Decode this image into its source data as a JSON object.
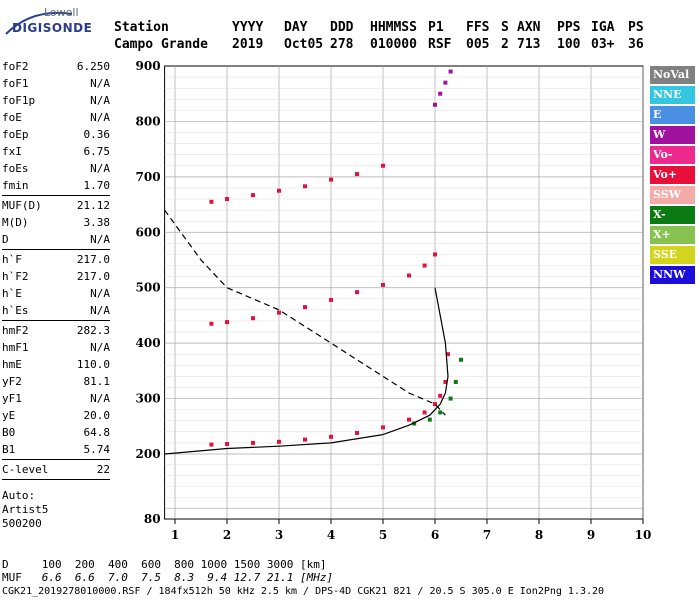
{
  "logo": {
    "top": "Lowell",
    "main": "DIGISONDE"
  },
  "header": {
    "labels": [
      "Station",
      "YYYY",
      "DAY",
      "DDD",
      "HHMMSS",
      "P1",
      "FFS",
      "S",
      "AXN",
      "PPS",
      "IGA",
      "PS"
    ],
    "values": [
      "Campo Grande",
      "2019",
      "Oct05",
      "278",
      "010000",
      "RSF",
      "005",
      "2",
      "713",
      "100",
      "03+",
      "36"
    ]
  },
  "params": {
    "group1": [
      {
        "k": "foF2",
        "v": "6.250"
      },
      {
        "k": "foF1",
        "v": "N/A"
      },
      {
        "k": "foF1p",
        "v": "N/A"
      },
      {
        "k": "foE",
        "v": "N/A"
      },
      {
        "k": "foEp",
        "v": "0.36"
      },
      {
        "k": "fxI",
        "v": "6.75"
      },
      {
        "k": "foEs",
        "v": "N/A"
      },
      {
        "k": "fmin",
        "v": "1.70"
      }
    ],
    "group2": [
      {
        "k": "MUF(D)",
        "v": "21.12"
      },
      {
        "k": "M(D)",
        "v": "3.38"
      },
      {
        "k": "D",
        "v": "N/A"
      }
    ],
    "group3": [
      {
        "k": "h`F",
        "v": "217.0"
      },
      {
        "k": "h`F2",
        "v": "217.0"
      },
      {
        "k": "h`E",
        "v": "N/A"
      },
      {
        "k": "h`Es",
        "v": "N/A"
      }
    ],
    "group4": [
      {
        "k": "hmF2",
        "v": "282.3"
      },
      {
        "k": "hmF1",
        "v": "N/A"
      },
      {
        "k": "hmE",
        "v": "110.0"
      },
      {
        "k": "yF2",
        "v": "81.1"
      },
      {
        "k": "yF1",
        "v": "N/A"
      },
      {
        "k": "yE",
        "v": "20.0"
      },
      {
        "k": "B0",
        "v": "64.8"
      },
      {
        "k": "B1",
        "v": "5.74"
      }
    ],
    "group5": [
      {
        "k": "C-level",
        "v": "22"
      }
    ],
    "auto": [
      "Auto:",
      "Artist5",
      "500200"
    ]
  },
  "legend": [
    {
      "label": "NoVal",
      "color": "#808080"
    },
    {
      "label": "NNE",
      "color": "#33c6e0"
    },
    {
      "label": "E",
      "color": "#4a90e2"
    },
    {
      "label": "W",
      "color": "#a0119e"
    },
    {
      "label": "Vo-",
      "color": "#ee2a8e"
    },
    {
      "label": "Vo+",
      "color": "#e8103a"
    },
    {
      "label": "SSW",
      "color": "#f4aaa6"
    },
    {
      "label": "X-",
      "color": "#0c7a12"
    },
    {
      "label": "X+",
      "color": "#85c24e"
    },
    {
      "label": "SSE",
      "color": "#d3d51c"
    },
    {
      "label": "NNW",
      "color": "#1a0ed8"
    }
  ],
  "bottom": {
    "d_line": "D     100  200  400  600  800 1000 1500 3000 [km]",
    "muf_label": "MUF",
    "muf_values": "   6.6  6.6  7.0  7.5  8.3  9.4 12.7 21.1 [MHz]",
    "footer": "CGK21_2019278010000.RSF / 184fx512h 50 kHz 2.5 km / DPS-4D CGK21 821 / 20.5 S 305.0 E Ion2Png 1.3.20"
  },
  "chart_data": {
    "type": "scatter",
    "xlim": [
      0.8,
      10
    ],
    "ylim": [
      80,
      900
    ],
    "xticks": [
      1,
      2,
      3,
      4,
      5,
      6,
      7,
      8,
      9,
      10
    ],
    "yticks": [
      80,
      200,
      300,
      400,
      500,
      600,
      700,
      800,
      900
    ],
    "grid": true,
    "f2_trace": {
      "series": "Vo+",
      "x": [
        1.7,
        2.0,
        2.5,
        3.0,
        3.5,
        4.0,
        4.5,
        5.0,
        5.5,
        5.8,
        6.0,
        6.1,
        6.2,
        6.25
      ],
      "y": [
        217,
        218,
        220,
        222,
        226,
        231,
        238,
        248,
        262,
        275,
        290,
        305,
        330,
        380
      ]
    },
    "x_trace": {
      "series": "X-",
      "x": [
        5.6,
        5.9,
        6.1,
        6.3,
        6.4,
        6.5
      ],
      "y": [
        255,
        262,
        275,
        300,
        330,
        370
      ]
    },
    "second_hop": {
      "series": "Vo+",
      "x": [
        1.7,
        2.0,
        2.5,
        3.0,
        3.5,
        4.0,
        4.5,
        5.0,
        5.5,
        5.8,
        6.0
      ],
      "y": [
        435,
        438,
        445,
        455,
        465,
        478,
        492,
        505,
        522,
        540,
        560
      ]
    },
    "third_hop": {
      "series": "Vo+",
      "x": [
        1.7,
        2.0,
        2.5,
        3.0,
        3.5,
        4.0,
        4.5,
        5.0
      ],
      "y": [
        655,
        660,
        667,
        675,
        683,
        695,
        705,
        720
      ]
    },
    "top_echoes": {
      "series": "W",
      "x": [
        6.0,
        6.1,
        6.2,
        6.3
      ],
      "y": [
        830,
        850,
        870,
        890
      ]
    },
    "profile_solid": {
      "x": [
        0.8,
        2.0,
        3.0,
        4.0,
        5.0,
        5.5,
        5.9,
        6.1,
        6.2,
        6.25,
        6.2,
        6.1,
        6.0
      ],
      "y": [
        200,
        210,
        214,
        220,
        235,
        252,
        270,
        290,
        310,
        340,
        400,
        450,
        500
      ]
    },
    "profile_dashed": {
      "x": [
        0.8,
        1.5,
        2.0,
        3.0,
        4.0,
        5.0,
        5.5,
        6.0,
        6.2
      ],
      "y": [
        640,
        550,
        500,
        460,
        400,
        340,
        310,
        290,
        270
      ]
    }
  }
}
